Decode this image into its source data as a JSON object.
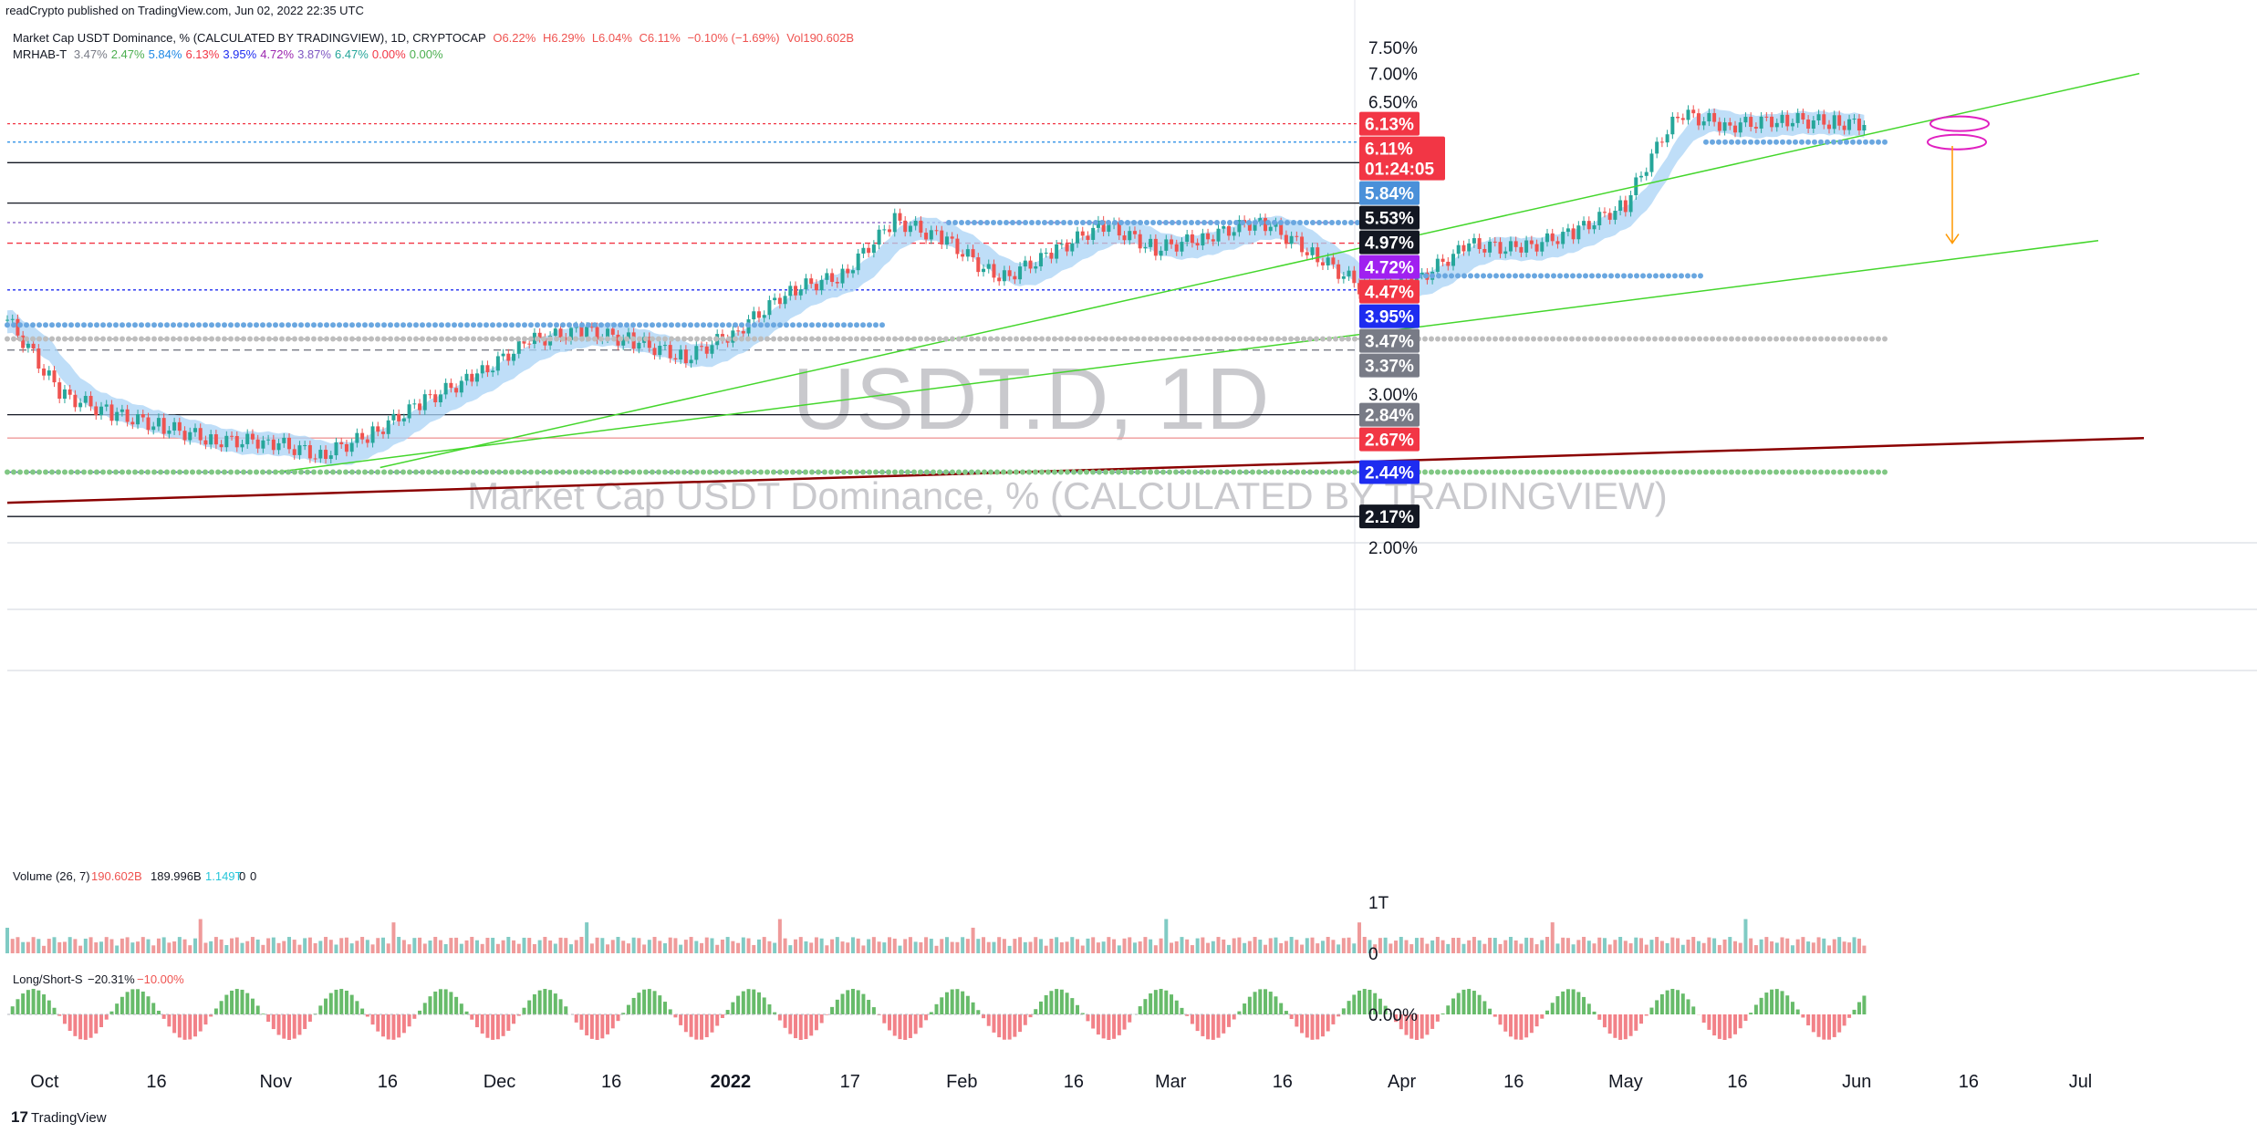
{
  "publish_line": "readCrypto published on TradingView.com, Jun 02, 2022 22:35 UTC",
  "legend": {
    "symbol_desc": "Market Cap USDT Dominance, % (CALCULATED BY TRADINGVIEW), 1D, CRYPTOCAP",
    "o": "O6.22%",
    "h": "H6.29%",
    "l": "L6.04%",
    "c": "C6.11%",
    "chg": "−0.10% (−1.69%)",
    "vol": "Vol190.602B",
    "indicator_name": "MRHAB-T",
    "indicator_values": [
      {
        "text": "3.47%",
        "color": "#787b86"
      },
      {
        "text": "2.47%",
        "color": "#4caf50"
      },
      {
        "text": "5.84%",
        "color": "#1e88e5"
      },
      {
        "text": "6.13%",
        "color": "#f23645"
      },
      {
        "text": "3.95%",
        "color": "#1e2cf0"
      },
      {
        "text": "4.72%",
        "color": "#9c27b0"
      },
      {
        "text": "3.87%",
        "color": "#7e57c2"
      },
      {
        "text": "6.47%",
        "color": "#26a69a"
      },
      {
        "text": "0.00%",
        "color": "#f23645"
      },
      {
        "text": "0.00%",
        "color": "#4caf50"
      }
    ]
  },
  "watermark": {
    "ticker": "USDT.D, 1D",
    "desc": "Market Cap USDT Dominance, % (CALCULATED BY TRADINGVIEW)"
  },
  "price_scale": {
    "ticks": [
      "7.50%",
      "7.00%",
      "6.50%",
      "3.00%",
      "2.00%"
    ]
  },
  "price_badges": [
    {
      "label": "6.13%",
      "bg": "#f23645"
    },
    {
      "label": "6.11%",
      "bg": "#f23645",
      "sub": "01:24:05"
    },
    {
      "label": "5.84%",
      "bg": "#4a90d9"
    },
    {
      "label": "5.53%",
      "bg": "#131722"
    },
    {
      "label": "4.97%",
      "bg": "#131722"
    },
    {
      "label": "4.72%",
      "bg": "#a020f0"
    },
    {
      "label": "4.47%",
      "bg": "#f23645"
    },
    {
      "label": "3.95%",
      "bg": "#1e2cf0"
    },
    {
      "label": "3.47%",
      "bg": "#787b86"
    },
    {
      "label": "3.37%",
      "bg": "#787b86"
    },
    {
      "label": "2.84%",
      "bg": "#787b86"
    },
    {
      "label": "2.67%",
      "bg": "#f23645"
    },
    {
      "label": "2.44%",
      "bg": "#1e2cf0"
    },
    {
      "label": "2.17%",
      "bg": "#131722"
    }
  ],
  "volume_pane": {
    "title": "Volume (26, 7)",
    "v1": "190.602B",
    "v2": "189.996B",
    "v3": "1.149T",
    "v4": "0",
    "v5": "0",
    "scale": [
      "1T",
      "0"
    ]
  },
  "ls_pane": {
    "title": "Long/Short-S",
    "v1": "−20.31%",
    "v2": "−10.00%",
    "scale": [
      "0.00%"
    ]
  },
  "x_axis": {
    "labels": [
      "Oct",
      "16",
      "Nov",
      "16",
      "Dec",
      "16",
      "2022",
      "17",
      "Feb",
      "16",
      "Mar",
      "16",
      "Apr",
      "16",
      "May",
      "16",
      "Jun",
      "16",
      "Jul"
    ]
  },
  "branding": "TradingView",
  "colors": {
    "up": "#26a69a",
    "down": "#ef5350",
    "ha_up": "#f4a582",
    "ribbon": "#a9d3f5"
  },
  "chart_data": {
    "type": "candlestick",
    "title": "USDT.D, 1D",
    "series": [
      {
        "name": "USDT.D daily close",
        "x": [
          "2021-09-26",
          "2021-10-03",
          "2021-10-10",
          "2021-10-17",
          "2021-10-24",
          "2021-10-31",
          "2021-11-07",
          "2021-11-14",
          "2021-11-21",
          "2021-11-28",
          "2021-12-05",
          "2021-12-12",
          "2021-12-19",
          "2021-12-26",
          "2022-01-02",
          "2022-01-09",
          "2022-01-16",
          "2022-01-23",
          "2022-01-30",
          "2022-02-06",
          "2022-02-13",
          "2022-02-20",
          "2022-02-27",
          "2022-03-06",
          "2022-03-13",
          "2022-03-20",
          "2022-03-27",
          "2022-04-03",
          "2022-04-10",
          "2022-04-17",
          "2022-04-24",
          "2022-05-01",
          "2022-05-08",
          "2022-05-15",
          "2022-05-22",
          "2022-05-29",
          "2022-06-02"
        ],
        "values": [
          3.65,
          3.0,
          2.85,
          2.75,
          2.65,
          2.65,
          2.55,
          2.7,
          2.95,
          3.15,
          3.45,
          3.55,
          3.45,
          3.3,
          3.55,
          3.95,
          4.1,
          4.75,
          4.5,
          4.05,
          4.35,
          4.7,
          4.4,
          4.55,
          4.75,
          4.35,
          3.95,
          4.05,
          4.45,
          4.4,
          4.6,
          4.95,
          6.3,
          6.1,
          6.2,
          6.15,
          6.11
        ]
      }
    ],
    "horizontal_levels": [
      6.13,
      5.84,
      5.53,
      4.97,
      4.72,
      4.47,
      3.95,
      3.47,
      3.37,
      2.84,
      2.67,
      2.44,
      2.17
    ],
    "ylim": [
      1.95,
      7.75
    ]
  }
}
